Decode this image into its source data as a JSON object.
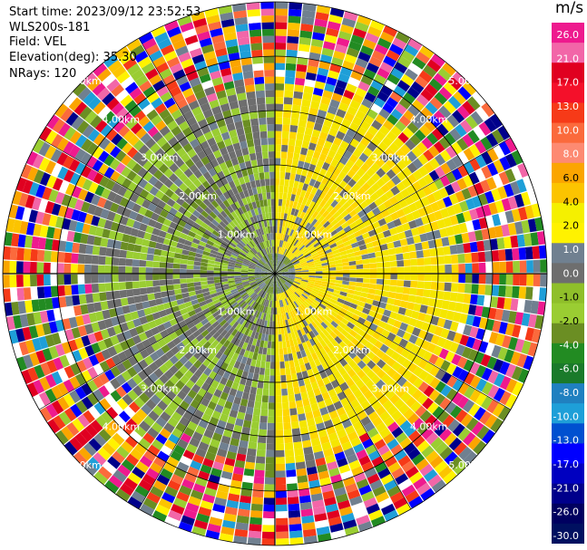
{
  "info": {
    "start_time": "Start time: 2023/09/12 23:52:53",
    "instrument": "WLS200s-181",
    "field": "Field: VEL",
    "elevation": "Elevation(deg): 35.30",
    "nrays": "NRays: 120"
  },
  "colorbar": {
    "title": "m/s",
    "ticks": [
      "26.0",
      "21.0",
      "17.0",
      "13.0",
      "10.0",
      "8.0",
      "6.0",
      "4.0",
      "2.0",
      "1.0",
      "0.0",
      "-1.0",
      "-2.0",
      "-4.0",
      "-6.0",
      "-8.0",
      "-10.0",
      "-13.0",
      "-17.0",
      "-21.0",
      "-26.0",
      "-30.0"
    ],
    "colors": [
      "#ee1a8e",
      "#f266a8",
      "#e00020",
      "#f4102a",
      "#f63a18",
      "#fb6a3c",
      "#fd8a72",
      "#fba500",
      "#fcc400",
      "#f5f000",
      "#fff200",
      "#708090",
      "#6e6e6e",
      "#8fbf2a",
      "#9acd32",
      "#6b8e23",
      "#228b22",
      "#1a7a2a",
      "#2080c0",
      "#1e9fd8",
      "#0050d0",
      "#0000ff",
      "#0000c0",
      "#00008b",
      "#000060",
      "#001060"
    ]
  },
  "chart_data": {
    "type": "ppi_scan",
    "field": "VEL",
    "units": "m/s",
    "nrays": 120,
    "elevation_deg": 35.3,
    "range_ring_labels": [
      "1.00km",
      "2.00km",
      "3.00km",
      "4.00km",
      "5.00km"
    ],
    "range_rings_km": [
      1,
      2,
      3,
      4,
      5
    ],
    "max_range_km": 5,
    "value_range": [
      -30,
      26
    ],
    "description_regions": [
      {
        "azimuth_from": 0,
        "azimuth_to": 180,
        "range_to_km": 3.3,
        "dominant_velocity": 2.5
      },
      {
        "azimuth_from": 180,
        "azimuth_to": 360,
        "range_to_km": 3.3,
        "dominant_velocity": -2.0
      },
      {
        "azimuth_from": 0,
        "azimuth_to": 360,
        "range_from_km": 3.3,
        "range_to_km": 5.0,
        "dominant_velocity": "noise"
      }
    ]
  }
}
